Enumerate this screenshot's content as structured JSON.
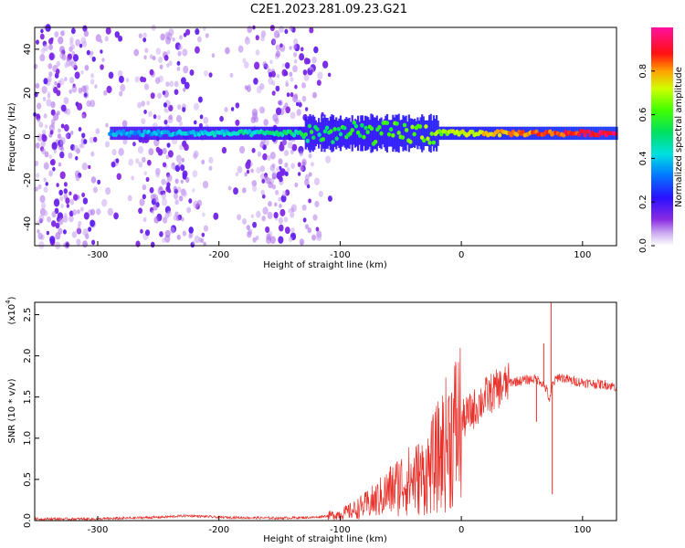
{
  "title": "C2E1.2023.281.09.23.G21",
  "chart_data": [
    {
      "type": "heatmap",
      "xlabel": "Height of straight line (km)",
      "ylabel": "Frequency (Hz)",
      "xlim": [
        -352,
        128
      ],
      "ylim": [
        -50,
        50
      ],
      "xticks": [
        -300,
        -200,
        -100,
        0,
        100
      ],
      "yticks": [
        -40,
        -20,
        0,
        20,
        40
      ],
      "colorbar": {
        "label": "Normalized spectral amplitude",
        "range": [
          0.0,
          1.0
        ],
        "ticks": [
          "0.0",
          "0.2",
          "0.4",
          "0.6",
          "0.8"
        ],
        "colormap": "rainbow (white→violet→blue→cyan→green→yellow→red→magenta)"
      },
      "features": [
        {
          "description": "scattered noise, low amplitude",
          "x_range": [
            -352,
            -120
          ],
          "freq_range": [
            -50,
            50
          ],
          "amplitude": 0.05
        },
        {
          "description": "signal band near 0 Hz",
          "x_range": [
            -290,
            128
          ],
          "freq_center": 1.5,
          "amplitude_start": 0.35,
          "amplitude_end": 0.95
        }
      ],
      "grid": false
    },
    {
      "type": "line",
      "xlabel": "Height of straight line (km)",
      "ylabel": "SNR (10 * v/v)",
      "multiplier": "(x10",
      "multiplier_exp": "4",
      "multiplier_close": ")",
      "xlim": [
        -352,
        128
      ],
      "ylim": [
        0.0,
        2.65
      ],
      "xticks": [
        -300,
        -200,
        -100,
        0,
        100
      ],
      "yticks": [
        "0.0",
        "0.5",
        "1.0",
        "1.5",
        "2.0",
        "2.5"
      ],
      "series_color": "#e8302a",
      "x": [
        -350,
        -300,
        -250,
        -225,
        -200,
        -150,
        -120,
        -100,
        -90,
        -80,
        -70,
        -60,
        -50,
        -40,
        -30,
        -20,
        -10,
        0,
        10,
        20,
        30,
        40,
        50,
        60,
        65,
        70,
        73,
        75,
        80,
        90,
        100,
        110,
        120,
        128
      ],
      "y": [
        0.02,
        0.02,
        0.04,
        0.06,
        0.04,
        0.03,
        0.04,
        0.08,
        0.12,
        0.18,
        0.25,
        0.35,
        0.45,
        0.5,
        0.55,
        0.75,
        1.0,
        1.2,
        1.35,
        1.5,
        1.6,
        1.68,
        1.7,
        1.72,
        1.7,
        1.6,
        1.45,
        1.65,
        1.75,
        1.7,
        1.68,
        1.66,
        1.65,
        1.62
      ],
      "spikes": [
        {
          "x": 74,
          "y": 2.65
        },
        {
          "x": 68,
          "y": 2.15
        },
        {
          "x": 75,
          "y": 0.32
        },
        {
          "x": 62,
          "y": 1.2
        }
      ],
      "grid": false
    }
  ]
}
